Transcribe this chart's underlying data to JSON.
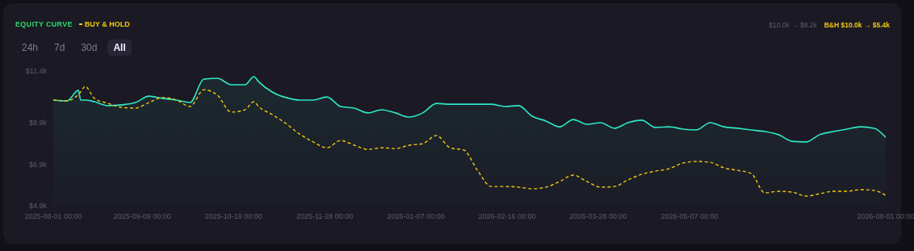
{
  "chart_data": {
    "type": "area",
    "title": "EQUITY CURVE",
    "legend": "top left",
    "annotations": [
      "24h",
      "7d",
      "30d",
      "All",
      "$10.0k → $8.2k",
      "B&H $10.0k → $5.4k"
    ],
    "x": [
      "2025-08-01",
      "2025-08-07",
      "2025-08-12",
      "2025-08-13",
      "2025-08-15",
      "2025-08-19",
      "2025-08-25",
      "2025-08-31",
      "2025-09-06",
      "2025-09-12",
      "2025-09-18",
      "2025-09-24",
      "2025-09-30",
      "2025-10-06",
      "2025-10-12",
      "2025-10-18",
      "2025-10-24",
      "2025-10-28",
      "2025-10-30",
      "2025-11-05",
      "2025-11-11",
      "2025-11-17",
      "2025-11-23",
      "2025-11-29",
      "2025-12-05",
      "2025-12-11",
      "2025-12-17",
      "2025-12-23",
      "2025-12-29",
      "2026-01-04",
      "2026-01-10",
      "2026-01-16",
      "2026-01-22",
      "2026-01-28",
      "2026-02-03",
      "2026-02-09",
      "2026-02-15",
      "2026-02-21",
      "2026-02-27",
      "2026-03-05",
      "2026-03-11",
      "2026-03-17",
      "2026-03-23",
      "2026-03-29",
      "2026-04-04",
      "2026-04-10",
      "2026-04-16",
      "2026-04-22",
      "2026-04-28",
      "2026-05-04",
      "2026-05-10",
      "2026-05-16",
      "2026-05-22",
      "2026-05-28",
      "2026-06-03",
      "2026-06-09",
      "2026-06-15",
      "2026-06-21",
      "2026-06-27",
      "2026-07-03",
      "2026-07-09",
      "2026-07-15",
      "2026-07-21",
      "2026-07-27",
      "2026-08-01"
    ],
    "series": [
      {
        "color": "#2de8c6",
        "line_style": "solid",
        "values": [
          10.0,
          9.96,
          10.47,
          10.0,
          10.0,
          9.92,
          9.73,
          9.77,
          9.88,
          10.19,
          10.08,
          10.0,
          9.88,
          11.01,
          11.05,
          10.74,
          10.74,
          11.13,
          10.89,
          10.39,
          10.12,
          10.0,
          10.0,
          10.15,
          9.69,
          9.61,
          9.38,
          9.53,
          9.38,
          9.18,
          9.38,
          9.84,
          9.8,
          9.8,
          9.8,
          9.8,
          9.69,
          9.73,
          9.22,
          8.99,
          8.71,
          9.06,
          8.83,
          8.91,
          8.64,
          8.91,
          9.03,
          8.68,
          8.71,
          8.6,
          8.56,
          8.91,
          8.71,
          8.64,
          8.56,
          8.48,
          8.33,
          8.01,
          7.98,
          8.33,
          8.48,
          8.6,
          8.71,
          8.64,
          8.2
        ]
      },
      {
        "type": "line",
        "name": "BUY & HOLD",
        "color": "#f2c811",
        "line_style": "dashed",
        "values": [
          10.0,
          9.96,
          10.27,
          10.39,
          10.66,
          10.08,
          9.84,
          9.65,
          9.61,
          9.88,
          10.12,
          10.0,
          9.69,
          10.5,
          10.23,
          9.42,
          9.53,
          9.92,
          9.69,
          9.3,
          8.87,
          8.36,
          7.98,
          7.7,
          8.05,
          7.82,
          7.62,
          7.7,
          7.66,
          7.82,
          7.9,
          8.29,
          7.7,
          7.59,
          6.61,
          5.83,
          5.83,
          5.8,
          5.72,
          5.8,
          6.07,
          6.38,
          6.07,
          5.8,
          5.83,
          6.15,
          6.42,
          6.57,
          6.69,
          6.96,
          7.04,
          7.0,
          6.73,
          6.61,
          6.46,
          5.52,
          5.6,
          5.56,
          5.37,
          5.48,
          5.6,
          5.6,
          5.68,
          5.64,
          5.4
        ]
      }
    ],
    "xlim": [
      "2025-08-01",
      "2026-08-01"
    ],
    "xticks": [
      {
        "value": "2025-08-01",
        "label": "2025-08-01 00:00"
      },
      {
        "value": "2025-09-09",
        "label": "2025-09-09 00:00"
      },
      {
        "value": "2025-10-19",
        "label": "2025-10-19 00:00"
      },
      {
        "value": "2025-11-28",
        "label": "2025-11-28 00:00"
      },
      {
        "value": "2026-01-07",
        "label": "2026-01-07 00:00"
      },
      {
        "value": "2026-02-16",
        "label": "2026-02-16 00:00"
      },
      {
        "value": "2026-03-28",
        "label": "2026-03-28 00:00"
      },
      {
        "value": "2026-05-07",
        "label": "2026-05-07 00:00"
      },
      {
        "value": "2026-08-01",
        "label": "2026-08-01 00:00"
      }
    ],
    "ylim": [
      4.9,
      11.4
    ],
    "yticks": [
      {
        "value": 4.9,
        "label": "$4.9k"
      },
      {
        "value": 6.9,
        "label": "$6.9k"
      },
      {
        "value": 8.9,
        "label": "$8.9k"
      },
      {
        "value": 11.4,
        "label": "$11.4k"
      }
    ],
    "grid": false,
    "marker": "none"
  }
}
